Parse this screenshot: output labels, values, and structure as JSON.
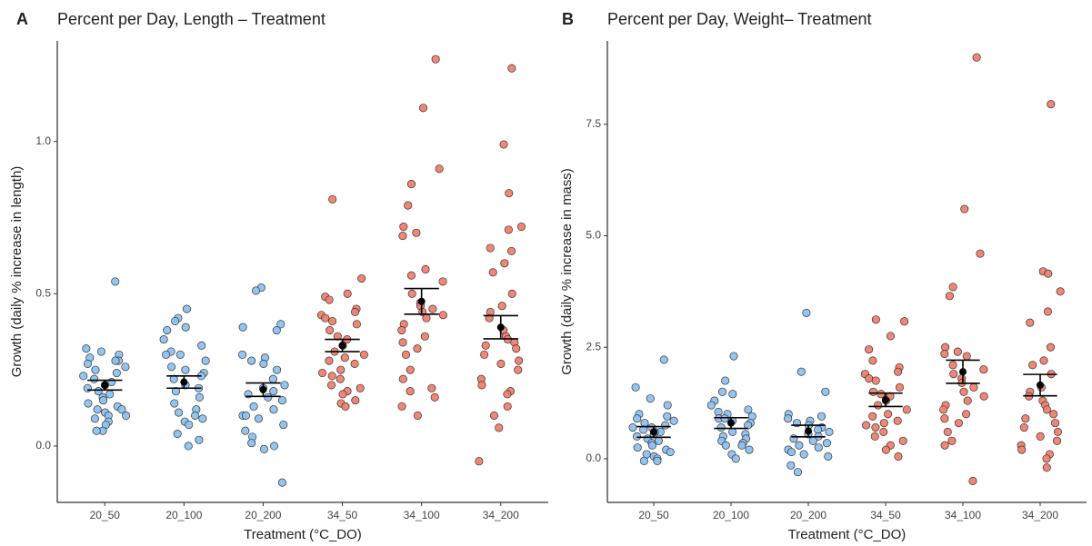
{
  "chart_data": [
    {
      "type": "strip",
      "panel": "A",
      "title": "Percent per Day, Length – Treatment",
      "x_label": "Treatment (°C_DO)",
      "y_label": "Growth (daily % increase in length)",
      "categories": [
        "20_50",
        "20_100",
        "20_200",
        "34_50",
        "34_100",
        "34_200"
      ],
      "colors": [
        "#8ec1ef",
        "#8ec1ef",
        "#8ec1ef",
        "#f0806e",
        "#f0806e",
        "#f0806e"
      ],
      "points": [
        [
          0.54,
          0.32,
          0.31,
          0.3,
          0.29,
          0.28,
          0.27,
          0.26,
          0.25,
          0.24,
          0.23,
          0.22,
          0.21,
          0.2,
          0.19,
          0.18,
          0.17,
          0.16,
          0.15,
          0.14,
          0.13,
          0.12,
          0.12,
          0.11,
          0.1,
          0.09,
          0.08,
          0.07,
          0.05,
          0.05,
          0.1,
          0.28
        ],
        [
          0.45,
          0.42,
          0.41,
          0.39,
          0.38,
          0.35,
          0.33,
          0.31,
          0.3,
          0.28,
          0.26,
          0.25,
          0.24,
          0.23,
          0.22,
          0.2,
          0.19,
          0.18,
          0.16,
          0.14,
          0.12,
          0.11,
          0.1,
          0.09,
          0.08,
          0.07,
          0.04,
          0.02,
          0.0,
          0.3
        ],
        [
          0.52,
          0.51,
          0.4,
          0.39,
          0.38,
          0.3,
          0.29,
          0.28,
          0.27,
          0.25,
          0.22,
          0.2,
          0.19,
          0.18,
          0.17,
          0.16,
          0.15,
          0.13,
          0.12,
          0.1,
          0.1,
          0.09,
          0.07,
          0.05,
          0.03,
          0.01,
          0.0,
          -0.01,
          -0.12
        ],
        [
          0.81,
          0.55,
          0.5,
          0.49,
          0.48,
          0.45,
          0.44,
          0.43,
          0.42,
          0.41,
          0.4,
          0.38,
          0.36,
          0.35,
          0.33,
          0.31,
          0.3,
          0.29,
          0.28,
          0.27,
          0.25,
          0.24,
          0.23,
          0.22,
          0.2,
          0.19,
          0.18,
          0.17,
          0.15,
          0.14,
          0.13
        ],
        [
          1.27,
          1.11,
          0.91,
          0.86,
          0.79,
          0.72,
          0.7,
          0.69,
          0.58,
          0.56,
          0.54,
          0.5,
          0.47,
          0.46,
          0.45,
          0.44,
          0.43,
          0.42,
          0.4,
          0.38,
          0.36,
          0.34,
          0.32,
          0.3,
          0.25,
          0.22,
          0.19,
          0.18,
          0.16,
          0.13,
          0.1
        ],
        [
          1.24,
          0.99,
          0.83,
          0.72,
          0.71,
          0.65,
          0.64,
          0.6,
          0.57,
          0.5,
          0.46,
          0.44,
          0.42,
          0.38,
          0.36,
          0.35,
          0.34,
          0.33,
          0.32,
          0.3,
          0.28,
          0.27,
          0.25,
          0.22,
          0.2,
          0.18,
          0.17,
          0.13,
          0.1,
          0.06,
          -0.05
        ]
      ],
      "means": [
        0.2,
        0.21,
        0.185,
        0.33,
        0.475,
        0.39
      ],
      "se": [
        0.016,
        0.02,
        0.022,
        0.02,
        0.042,
        0.038
      ],
      "ylim": [
        -0.185,
        1.33
      ],
      "yticks": [
        {
          "value": 0,
          "label": "0.0"
        },
        0.5,
        {
          "value": 1,
          "label": "1.0"
        }
      ]
    },
    {
      "type": "strip",
      "panel": "B",
      "title": "Percent per Day, Weight– Treatment",
      "x_label": "Treatment (°C_DO)",
      "y_label": "Growth (daily % increase in mass)",
      "categories": [
        "20_50",
        "20_100",
        "20_200",
        "34_50",
        "34_100",
        "34_200"
      ],
      "colors": [
        "#8ec1ef",
        "#8ec1ef",
        "#8ec1ef",
        "#f0806e",
        "#f0806e",
        "#f0806e"
      ],
      "points": [
        [
          2.22,
          1.6,
          1.35,
          1.2,
          1.0,
          0.95,
          0.9,
          0.85,
          0.8,
          0.75,
          0.7,
          0.65,
          0.6,
          0.55,
          0.5,
          0.45,
          0.4,
          0.35,
          0.3,
          0.25,
          0.2,
          0.15,
          0.1,
          0.05,
          0.0,
          -0.05,
          -0.05,
          0.6,
          0.7
        ],
        [
          2.3,
          1.75,
          1.5,
          1.45,
          1.3,
          1.2,
          1.1,
          1.05,
          1.0,
          0.95,
          0.9,
          0.85,
          0.8,
          0.75,
          0.7,
          0.6,
          0.55,
          0.5,
          0.45,
          0.4,
          0.35,
          0.3,
          0.3,
          0.2,
          0.1,
          0.0,
          0.9
        ],
        [
          3.27,
          1.95,
          1.5,
          1.0,
          0.95,
          0.9,
          0.85,
          0.8,
          0.75,
          0.7,
          0.65,
          0.6,
          0.55,
          0.5,
          0.45,
          0.4,
          0.35,
          0.3,
          0.25,
          0.2,
          0.15,
          0.1,
          0.05,
          -0.15,
          -0.3
        ],
        [
          3.12,
          3.08,
          2.75,
          2.45,
          2.2,
          2.05,
          1.95,
          1.9,
          1.8,
          1.75,
          1.6,
          1.5,
          1.45,
          1.4,
          1.3,
          1.2,
          1.1,
          1.0,
          0.95,
          0.85,
          0.8,
          0.75,
          0.7,
          0.6,
          0.5,
          0.4,
          0.3,
          0.2,
          0.05
        ],
        [
          9.0,
          5.6,
          4.6,
          3.85,
          3.65,
          2.5,
          2.4,
          2.35,
          2.3,
          2.1,
          2.0,
          1.9,
          1.8,
          1.7,
          1.6,
          1.5,
          1.4,
          1.3,
          1.2,
          1.1,
          1.0,
          0.9,
          0.8,
          0.6,
          0.4,
          0.3,
          -0.5
        ],
        [
          7.95,
          4.2,
          4.15,
          3.75,
          3.3,
          3.05,
          2.5,
          2.2,
          2.1,
          1.9,
          1.6,
          1.5,
          1.4,
          1.3,
          1.2,
          1.1,
          1.0,
          0.9,
          0.8,
          0.7,
          0.6,
          0.5,
          0.4,
          0.3,
          0.2,
          0.1,
          0.0,
          -0.2
        ]
      ],
      "means": [
        0.6,
        0.8,
        0.62,
        1.32,
        1.95,
        1.65
      ],
      "se": [
        0.12,
        0.12,
        0.13,
        0.15,
        0.26,
        0.24
      ],
      "ylim": [
        -0.98,
        9.37
      ],
      "yticks": [
        {
          "value": 0,
          "label": "0.0"
        },
        2.5,
        {
          "value": 5,
          "label": "5.0"
        },
        7.5
      ]
    }
  ]
}
